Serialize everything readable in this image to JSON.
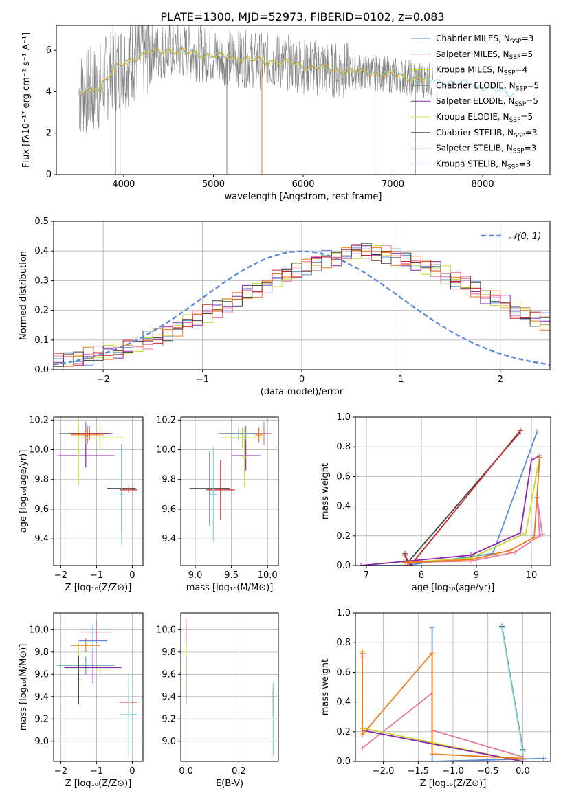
{
  "colors": {
    "chabrier_miles": "#5b8bdc",
    "salpeter_miles": "#e8779a",
    "kroupa_miles": "#c3dc32",
    "chabrier_elodie": "#6fa0a0",
    "salpeter_elodie": "#8e24aa",
    "kroupa_elodie": "#d6e04a",
    "chabrier_stelib": "#444444",
    "salpeter_stelib": "#c62828",
    "kroupa_stelib": "#80d8e0",
    "orange": "#ef7a1a",
    "data_gray": "#808080",
    "grid": "#b0b0b0"
  },
  "figure_title": "PLATE=1300, MJD=52973, FIBERID=0102, z=0.083",
  "chart_data": [
    {
      "id": "spectrum",
      "type": "line",
      "title": "PLATE=1300, MJD=52973, FIBERID=0102, z=0.083",
      "xlabel": "wavelength [Angstrom, rest frame]",
      "ylabel": "Flux [fλ10⁻¹⁷ erg cm⁻² s⁻¹ A⁻¹]",
      "xlim": [
        3250,
        8750
      ],
      "ylim": [
        0,
        7.2
      ],
      "xticks": [
        4000,
        5000,
        6000,
        7000,
        8000
      ],
      "yticks": [
        0,
        2,
        4,
        6
      ],
      "grid": false,
      "legend_position": "top-right",
      "model_curve": {
        "x": [
          3500,
          3700,
          3900,
          4100,
          4300,
          4500,
          4700,
          4900,
          5100,
          5300,
          5500,
          5700,
          5900,
          6100,
          6300,
          6500,
          6700,
          6900,
          7100,
          7300,
          7500,
          7700,
          7900,
          8100,
          8300
        ],
        "y": [
          3.9,
          4.1,
          5.1,
          5.6,
          5.9,
          6.0,
          5.9,
          5.8,
          5.7,
          5.6,
          5.5,
          5.45,
          5.35,
          5.2,
          5.1,
          5.0,
          4.95,
          4.85,
          4.75,
          4.6,
          4.5,
          4.4,
          4.35,
          4.1,
          3.95
        ]
      },
      "legend": [
        {
          "label": "Chabrier MILES",
          "nssp": "3",
          "color_key": "chabrier_miles"
        },
        {
          "label": "Salpeter MILES",
          "nssp": "5",
          "color_key": "salpeter_miles"
        },
        {
          "label": "Kroupa MILES",
          "nssp": "4",
          "color_key": "kroupa_miles"
        },
        {
          "label": "Chabrier ELODIE",
          "nssp": "5",
          "color_key": "chabrier_elodie"
        },
        {
          "label": "Salpeter ELODIE",
          "nssp": "5",
          "color_key": "salpeter_elodie"
        },
        {
          "label": "Kroupa ELODIE",
          "nssp": "5",
          "color_key": "kroupa_elodie"
        },
        {
          "label": "Chabrier STELIB",
          "nssp": "3",
          "color_key": "chabrier_stelib"
        },
        {
          "label": "Salpeter STELIB",
          "nssp": "3",
          "color_key": "salpeter_stelib"
        },
        {
          "label": "Kroupa STELIB",
          "nssp": "3",
          "color_key": "kroupa_stelib"
        }
      ]
    },
    {
      "id": "residuals",
      "type": "line",
      "xlabel": "(data-model)/error",
      "ylabel": "Normed distribution",
      "xlim": [
        -2.5,
        2.5
      ],
      "ylim": [
        0,
        0.5
      ],
      "xticks": [
        -2,
        -1,
        0,
        1,
        2
      ],
      "yticks": [
        0.0,
        0.1,
        0.2,
        0.3,
        0.4,
        0.5
      ],
      "grid": true,
      "legend_position": "top-right",
      "legend": [
        {
          "label": "𝒩(0, 1)",
          "color_key": "chabrier_miles",
          "dashed": true
        }
      ],
      "bin_edges_start": -2.5,
      "bin_width": 0.1,
      "histogram_mean": [
        0.025,
        0.03,
        0.035,
        0.045,
        0.05,
        0.06,
        0.065,
        0.075,
        0.085,
        0.1,
        0.11,
        0.125,
        0.14,
        0.16,
        0.175,
        0.19,
        0.205,
        0.22,
        0.24,
        0.26,
        0.27,
        0.29,
        0.31,
        0.32,
        0.34,
        0.35,
        0.36,
        0.375,
        0.38,
        0.39,
        0.4,
        0.405,
        0.395,
        0.39,
        0.38,
        0.37,
        0.36,
        0.35,
        0.34,
        0.32,
        0.3,
        0.29,
        0.27,
        0.25,
        0.24,
        0.22,
        0.2,
        0.19,
        0.17,
        0.16,
        0.14,
        0.13,
        0.11,
        0.1,
        0.085,
        0.075,
        0.065,
        0.055,
        0.045,
        0.035,
        0.03,
        0.025
      ]
    },
    {
      "id": "age_vs_Z",
      "type": "scatter",
      "xlabel": "Z [log₁₀(Z/Z⊙)]",
      "ylabel": "age  [log₁₀(age/yr)]",
      "xlim": [
        -2.2,
        0.3
      ],
      "ylim": [
        9.22,
        10.22
      ],
      "xticks": [
        -2,
        -1,
        0
      ],
      "yticks": [
        9.4,
        9.6,
        9.8,
        10.0,
        10.2
      ],
      "grid": true,
      "errorbars": [
        {
          "x": -1.3,
          "y": 10.11,
          "xerr": 0.75,
          "yerr": 0.08,
          "color_key": "chabrier_miles"
        },
        {
          "x": -1.25,
          "y": 10.1,
          "xerr": 0.45,
          "yerr": 0.06,
          "color_key": "salpeter_miles"
        },
        {
          "x": -0.9,
          "y": 10.08,
          "xerr": 0.65,
          "yerr": 0.09,
          "color_key": "kroupa_miles"
        },
        {
          "x": -1.5,
          "y": 10.11,
          "xerr": 0.5,
          "yerr": 0.05,
          "color_key": "chabrier_elodie"
        },
        {
          "x": -1.3,
          "y": 9.96,
          "xerr": 0.8,
          "yerr": 0.08,
          "color_key": "salpeter_elodie"
        },
        {
          "x": -1.5,
          "y": 10.0,
          "xerr": 0.05,
          "yerr": 0.24,
          "color_key": "kroupa_elodie"
        },
        {
          "x": -0.3,
          "y": 9.74,
          "xerr": 0.4,
          "yerr": 0.3,
          "color_key": "chabrier_stelib"
        },
        {
          "x": -1.2,
          "y": 10.11,
          "xerr": 0.55,
          "yerr": 0.05,
          "color_key": "salpeter_stelib"
        },
        {
          "x": -0.3,
          "y": 9.7,
          "xerr": 0.05,
          "yerr": 0.34,
          "color_key": "kroupa_stelib"
        },
        {
          "x": -1.3,
          "y": 10.1,
          "xerr": 0.4,
          "yerr": 0.05,
          "color_key": "orange"
        },
        {
          "x": -0.1,
          "y": 9.73,
          "xerr": 0.25,
          "yerr": 0.02,
          "color_key": "salpeter_stelib"
        }
      ]
    },
    {
      "id": "age_vs_mass",
      "type": "scatter",
      "xlabel": "mass [log₁₀(M/M⊙)]",
      "ylabel": "",
      "xlim": [
        8.8,
        10.15
      ],
      "ylim": [
        9.22,
        10.22
      ],
      "xticks": [
        9.0,
        9.5,
        10.0
      ],
      "yticks": [
        9.4,
        9.6,
        9.8,
        10.0,
        10.2
      ],
      "grid": true,
      "errorbars": [
        {
          "x": 9.7,
          "y": 10.11,
          "xerr": 0.28,
          "yerr": 0.05,
          "color_key": "chabrier_miles"
        },
        {
          "x": 9.95,
          "y": 10.11,
          "xerr": 0.1,
          "yerr": 0.08,
          "color_key": "salpeter_miles"
        },
        {
          "x": 9.65,
          "y": 10.08,
          "xerr": 0.3,
          "yerr": 0.07,
          "color_key": "kroupa_miles"
        },
        {
          "x": 9.6,
          "y": 10.11,
          "xerr": 0.28,
          "yerr": 0.05,
          "color_key": "chabrier_elodie"
        },
        {
          "x": 9.7,
          "y": 9.96,
          "xerr": 0.2,
          "yerr": 0.1,
          "color_key": "salpeter_elodie"
        },
        {
          "x": 9.68,
          "y": 9.95,
          "xerr": 0.03,
          "yerr": 0.2,
          "color_key": "kroupa_elodie"
        },
        {
          "x": 9.2,
          "y": 9.74,
          "xerr": 0.28,
          "yerr": 0.25,
          "color_key": "chabrier_stelib"
        },
        {
          "x": 9.35,
          "y": 9.73,
          "xerr": 0.2,
          "yerr": 0.2,
          "color_key": "salpeter_stelib"
        },
        {
          "x": 9.25,
          "y": 9.7,
          "xerr": 0.05,
          "yerr": 0.32,
          "color_key": "kroupa_stelib"
        },
        {
          "x": 9.88,
          "y": 10.1,
          "xerr": 0.05,
          "yerr": 0.05,
          "color_key": "orange"
        }
      ]
    },
    {
      "id": "mass_weight_vs_age",
      "type": "line",
      "xlabel": "age  [log₁₀(age/yr)]",
      "ylabel": "mass weight",
      "xlim": [
        6.8,
        10.35
      ],
      "ylim": [
        0,
        1.0
      ],
      "xticks": [
        7,
        8,
        9,
        10
      ],
      "yticks": [
        0.0,
        0.2,
        0.4,
        0.6,
        0.8,
        1.0
      ],
      "grid": true,
      "series": [
        {
          "color_key": "chabrier_miles",
          "x": [
            6.9,
            7.7,
            9.3,
            10.1
          ],
          "y": [
            0.0,
            0.0,
            0.08,
            0.9
          ]
        },
        {
          "color_key": "salpeter_miles",
          "x": [
            7.7,
            8.9,
            9.7,
            10.15,
            10.1,
            10.2
          ],
          "y": [
            0.02,
            0.03,
            0.09,
            0.2,
            0.46,
            0.21
          ]
        },
        {
          "color_key": "kroupa_miles",
          "x": [
            7.7,
            8.9,
            9.9,
            10.15
          ],
          "y": [
            0.02,
            0.05,
            0.22,
            0.74
          ]
        },
        {
          "color_key": "salpeter_elodie",
          "x": [
            6.9,
            8.9,
            9.8,
            10.0,
            10.15
          ],
          "y": [
            0.0,
            0.07,
            0.22,
            0.71,
            0.74
          ]
        },
        {
          "color_key": "chabrier_stelib",
          "x": [
            7.7,
            7.75,
            9.8
          ],
          "y": [
            0.08,
            0.02,
            0.9
          ]
        },
        {
          "color_key": "salpeter_stelib",
          "x": [
            7.7,
            7.8,
            9.8
          ],
          "y": [
            0.07,
            0.0,
            0.91
          ]
        },
        {
          "color_key": "orange",
          "x": [
            7.7,
            8.9,
            9.6,
            10.05,
            10.15
          ],
          "y": [
            0.02,
            0.04,
            0.1,
            0.19,
            0.73
          ]
        }
      ]
    },
    {
      "id": "mass_vs_Z",
      "type": "scatter",
      "xlabel": "Z [log₁₀(Z/Z⊙)]",
      "ylabel": "mass [log₁₀(M/M⊙)]",
      "xlim": [
        -2.2,
        0.3
      ],
      "ylim": [
        8.82,
        10.15
      ],
      "xticks": [
        -2,
        -1,
        0
      ],
      "yticks": [
        9.0,
        9.2,
        9.4,
        9.6,
        9.8,
        10.0
      ],
      "grid": true,
      "errorbars": [
        {
          "x": -1.1,
          "y": 9.9,
          "xerr": 0.4,
          "yerr": 0.15,
          "color_key": "chabrier_miles"
        },
        {
          "x": -1.0,
          "y": 9.98,
          "xerr": 0.45,
          "yerr": 0.1,
          "color_key": "salpeter_miles"
        },
        {
          "x": -0.9,
          "y": 9.63,
          "xerr": 0.65,
          "yerr": 0.05,
          "color_key": "kroupa_miles"
        },
        {
          "x": -1.3,
          "y": 9.68,
          "xerr": 0.8,
          "yerr": 0.08,
          "color_key": "chabrier_elodie"
        },
        {
          "x": -1.1,
          "y": 9.66,
          "xerr": 0.8,
          "yerr": 0.14,
          "color_key": "salpeter_elodie"
        },
        {
          "x": -1.5,
          "y": 9.63,
          "xerr": 0.05,
          "yerr": 0.25,
          "color_key": "kroupa_elodie"
        },
        {
          "x": -1.5,
          "y": 9.55,
          "xerr": 0.05,
          "yerr": 0.22,
          "color_key": "chabrier_stelib"
        },
        {
          "x": -0.1,
          "y": 9.35,
          "xerr": 0.25,
          "yerr": 0.13,
          "color_key": "salpeter_stelib"
        },
        {
          "x": -0.1,
          "y": 9.24,
          "xerr": 0.25,
          "yerr": 0.37,
          "color_key": "kroupa_stelib"
        },
        {
          "x": -1.3,
          "y": 9.86,
          "xerr": 0.4,
          "yerr": 0.06,
          "color_key": "orange"
        }
      ]
    },
    {
      "id": "mass_vs_ebv",
      "type": "scatter",
      "xlabel": "E(B-V)",
      "ylabel": "",
      "xlim": [
        -0.02,
        0.35
      ],
      "ylim": [
        8.82,
        10.15
      ],
      "xticks": [
        0.0,
        0.2
      ],
      "yticks": [
        9.0,
        9.2,
        9.4,
        9.6,
        9.8,
        10.0
      ],
      "grid": true,
      "errorbars": [
        {
          "x": 0.0,
          "y": 9.9,
          "xerr": 0.0,
          "yerr": 0.15,
          "color_key": "chabrier_miles"
        },
        {
          "x": 0.0,
          "y": 9.98,
          "xerr": 0.0,
          "yerr": 0.12,
          "color_key": "salpeter_miles"
        },
        {
          "x": 0.0,
          "y": 9.63,
          "xerr": 0.0,
          "yerr": 0.25,
          "color_key": "kroupa_miles"
        },
        {
          "x": 0.0,
          "y": 9.55,
          "xerr": 0.0,
          "yerr": 0.22,
          "color_key": "chabrier_stelib"
        },
        {
          "x": 0.33,
          "y": 9.35,
          "xerr": 0.0,
          "yerr": 0.13,
          "color_key": "salpeter_stelib"
        },
        {
          "x": 0.33,
          "y": 9.2,
          "xerr": 0.0,
          "yerr": 0.33,
          "color_key": "kroupa_stelib"
        }
      ]
    },
    {
      "id": "mass_weight_vs_Z",
      "type": "line",
      "xlabel": "Z [log₁₀(Z/Z⊙)]",
      "ylabel": "mass weight",
      "xlim": [
        -2.4,
        0.4
      ],
      "ylim": [
        0,
        1.0
      ],
      "xticks": [
        -2.0,
        -1.5,
        -1.0,
        -0.5,
        0.0
      ],
      "yticks": [
        0.0,
        0.2,
        0.4,
        0.6,
        0.8,
        1.0
      ],
      "grid": true,
      "series": [
        {
          "color_key": "chabrier_miles",
          "x": [
            -1.3,
            -1.3,
            0.3
          ],
          "y": [
            0.9,
            0.0,
            0.02
          ]
        },
        {
          "color_key": "salpeter_miles",
          "x": [
            -2.3,
            -1.3,
            -1.3,
            0.0
          ],
          "y": [
            0.09,
            0.46,
            0.21,
            0.03
          ]
        },
        {
          "color_key": "kroupa_miles",
          "x": [
            -2.3,
            -2.3,
            -2.25,
            0.0
          ],
          "y": [
            0.74,
            0.22,
            0.22,
            0.0
          ]
        },
        {
          "color_key": "salpeter_elodie",
          "x": [
            -2.3,
            -2.3,
            0.0
          ],
          "y": [
            0.71,
            0.21,
            0.0
          ]
        },
        {
          "color_key": "chabrier_stelib",
          "x": [
            -0.3,
            0.0,
            0.0
          ],
          "y": [
            0.91,
            0.08,
            0.0
          ]
        },
        {
          "color_key": "kroupa_stelib",
          "x": [
            -0.3,
            0.0,
            0.0
          ],
          "y": [
            0.9,
            0.07,
            0.0
          ]
        },
        {
          "color_key": "orange",
          "x": [
            -2.3,
            -2.3,
            -1.3,
            -1.3,
            0.0
          ],
          "y": [
            0.73,
            0.18,
            0.73,
            0.05,
            0.02
          ]
        }
      ]
    }
  ]
}
